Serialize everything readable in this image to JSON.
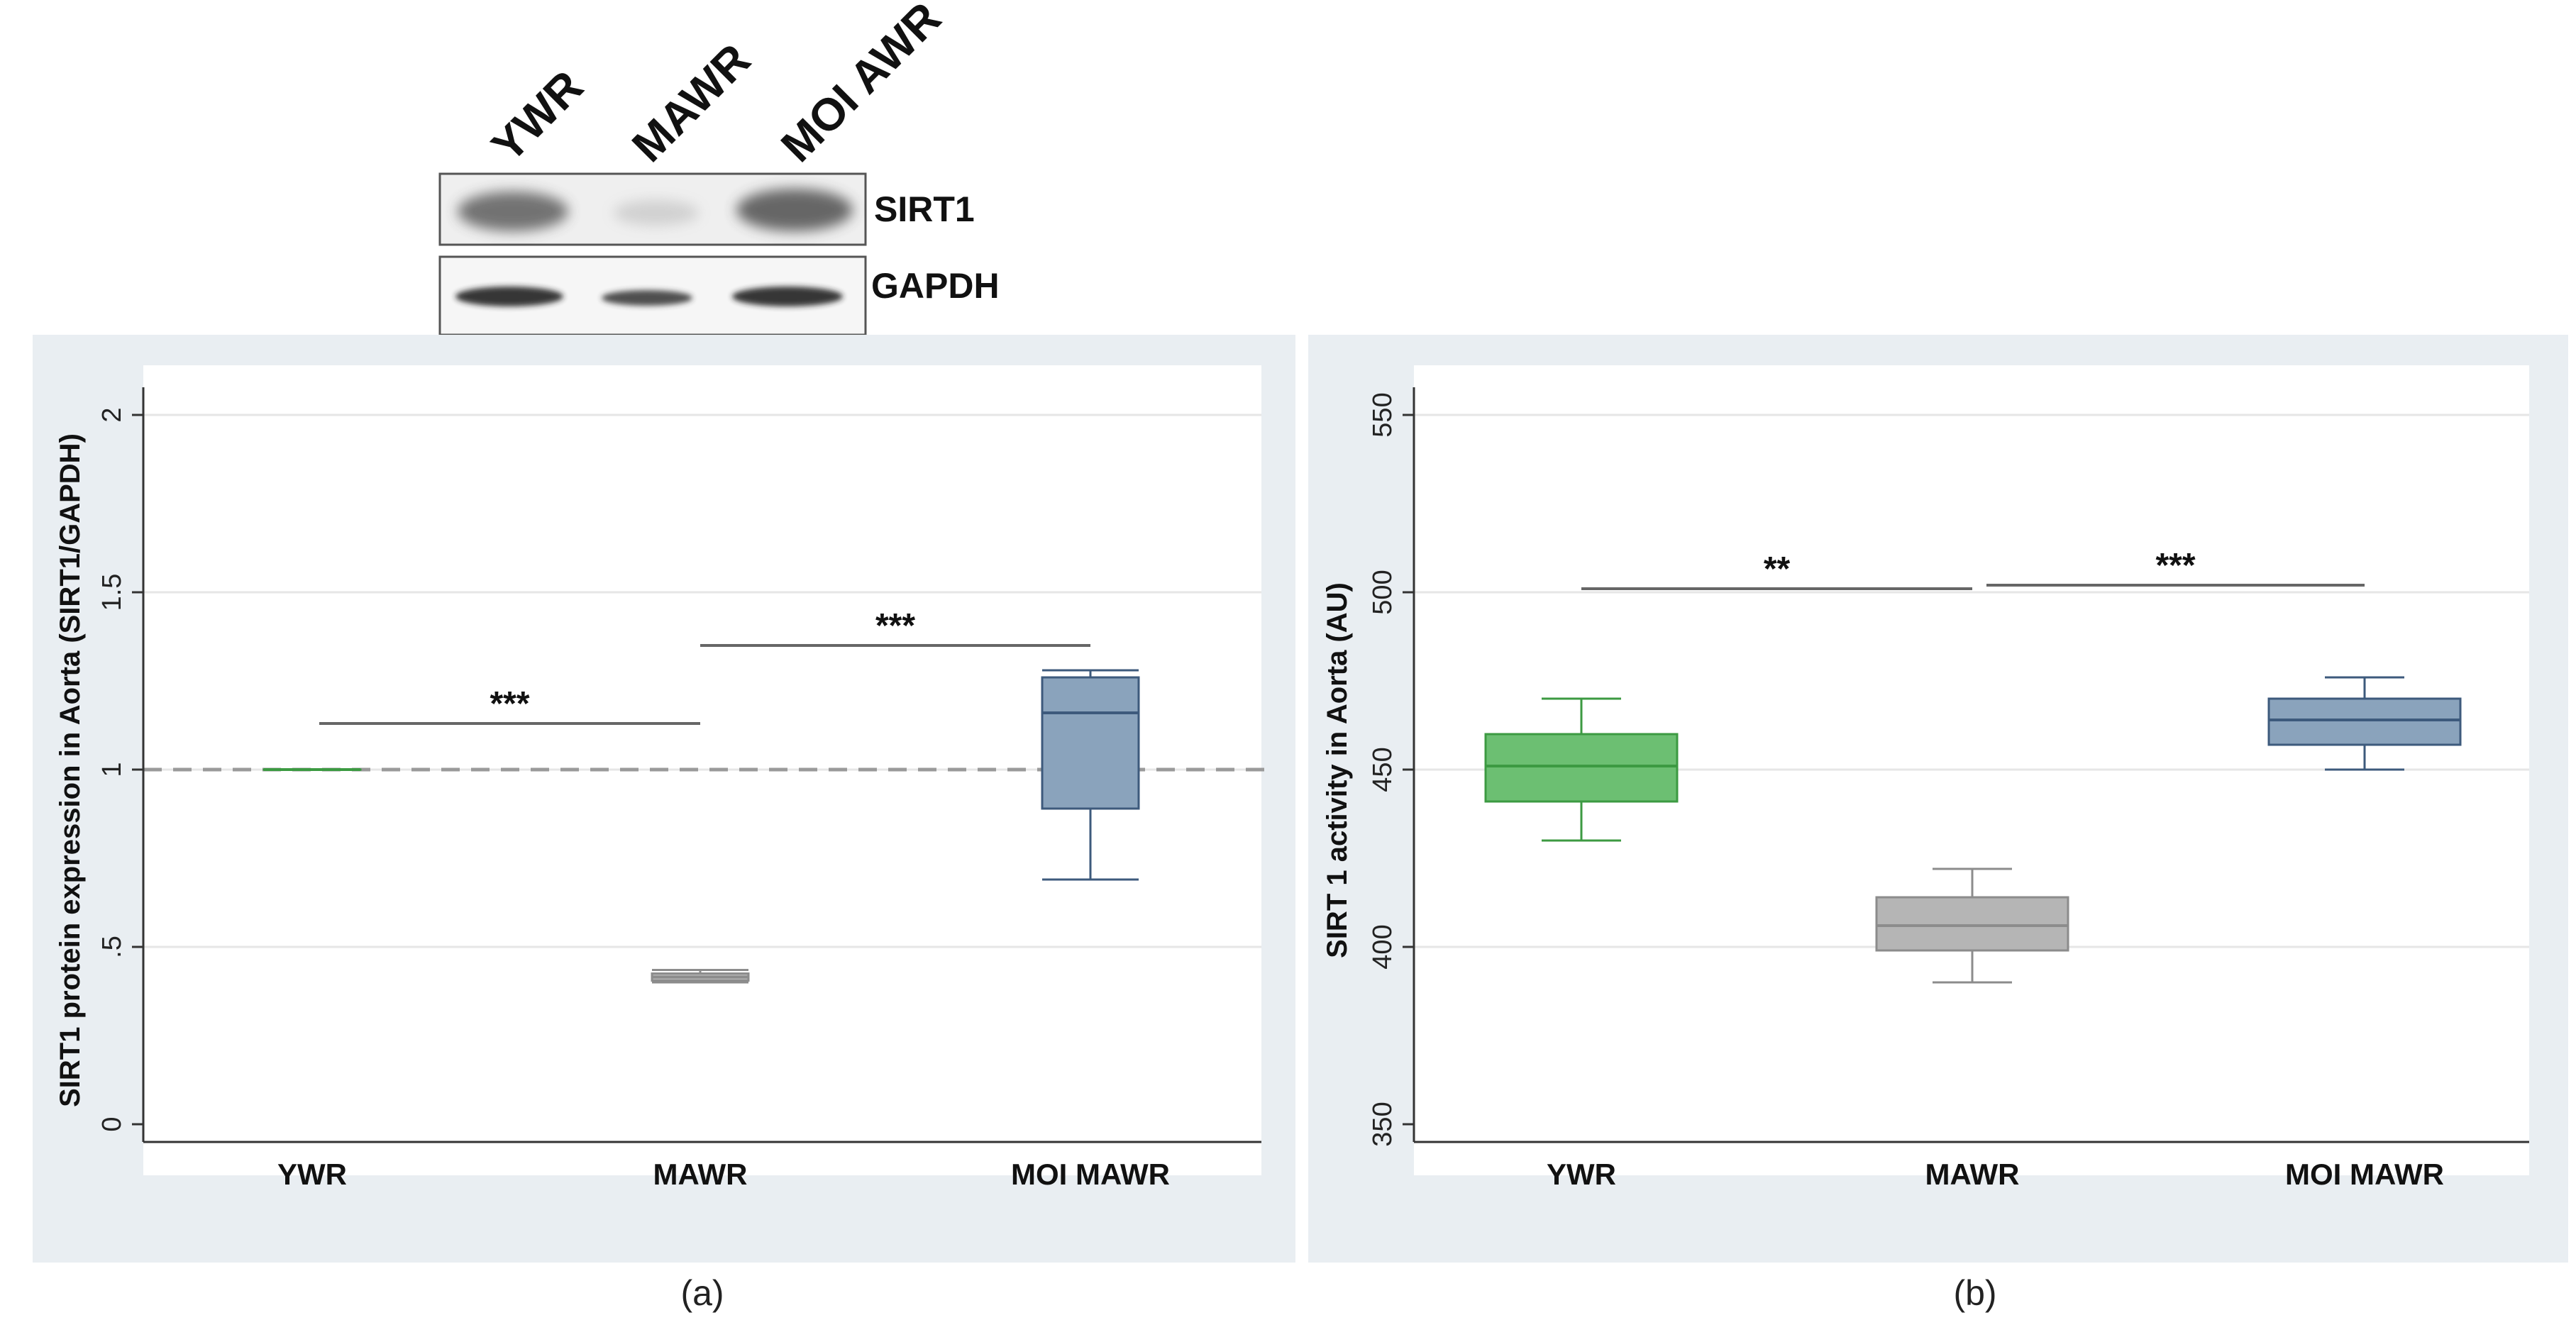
{
  "blot": {
    "lanes": [
      "YWR",
      "MAWR",
      "MOI AWR"
    ],
    "proteins": [
      "SIRT1",
      "GAPDH"
    ]
  },
  "panels": [
    {
      "label": "(a)"
    },
    {
      "label": "(b)"
    }
  ],
  "chart_data": [
    {
      "type": "box",
      "title": "",
      "xlabel": "",
      "ylabel": "SIRT1 protein expression in Aorta (SIRT1/GAPDH)",
      "categories": [
        "YWR",
        "MAWR",
        "MOI MAWR"
      ],
      "ylim": [
        -0.05,
        2.05
      ],
      "yticks": [
        0,
        0.5,
        1,
        1.5,
        2
      ],
      "ytick_labels": [
        "0",
        ".5",
        "1",
        "1.5",
        "2"
      ],
      "grid": true,
      "reference_line": 1,
      "boxes": [
        {
          "category": "YWR",
          "min": 1.0,
          "q1": 1.0,
          "median": 1.0,
          "q3": 1.0,
          "max": 1.0,
          "color": "#6cbf72",
          "edge": "#3c9a42"
        },
        {
          "category": "MAWR",
          "min": 0.4,
          "q1": 0.405,
          "median": 0.415,
          "q3": 0.425,
          "max": 0.435,
          "color": "#b5b5b5",
          "edge": "#8c8c8c"
        },
        {
          "category": "MOI MAWR",
          "min": 0.69,
          "q1": 0.89,
          "median": 1.16,
          "q3": 1.26,
          "max": 1.28,
          "color": "#8aa3bc",
          "edge": "#3d5a7c"
        }
      ],
      "significance": [
        {
          "from": "YWR",
          "to": "MAWR",
          "y": 1.13,
          "label": "***"
        },
        {
          "from": "MAWR",
          "to": "MOI MAWR",
          "y": 1.35,
          "label": "***"
        }
      ]
    },
    {
      "type": "box",
      "title": "",
      "xlabel": "",
      "ylabel": "SIRT 1 activity in Aorta (AU)",
      "categories": [
        "YWR",
        "MAWR",
        "MOI MAWR"
      ],
      "ylim": [
        345,
        555
      ],
      "yticks": [
        350,
        400,
        450,
        500,
        550
      ],
      "ytick_labels": [
        "350",
        "400",
        "450",
        "500",
        "550"
      ],
      "grid": true,
      "boxes": [
        {
          "category": "YWR",
          "min": 430,
          "q1": 441,
          "median": 451,
          "q3": 460,
          "max": 470,
          "color": "#6cbf72",
          "edge": "#3c9a42"
        },
        {
          "category": "MAWR",
          "min": 390,
          "q1": 399,
          "median": 406,
          "q3": 414,
          "max": 422,
          "color": "#b5b5b5",
          "edge": "#8c8c8c"
        },
        {
          "category": "MOI MAWR",
          "min": 450,
          "q1": 457,
          "median": 464,
          "q3": 470,
          "max": 476,
          "color": "#8aa3bc",
          "edge": "#3d5a7c"
        }
      ],
      "significance": [
        {
          "from": "YWR",
          "to": "MAWR",
          "y": 501,
          "label": "**"
        },
        {
          "from": "MAWR",
          "to": "MOI MAWR",
          "y": 502,
          "label": "***"
        }
      ]
    }
  ]
}
